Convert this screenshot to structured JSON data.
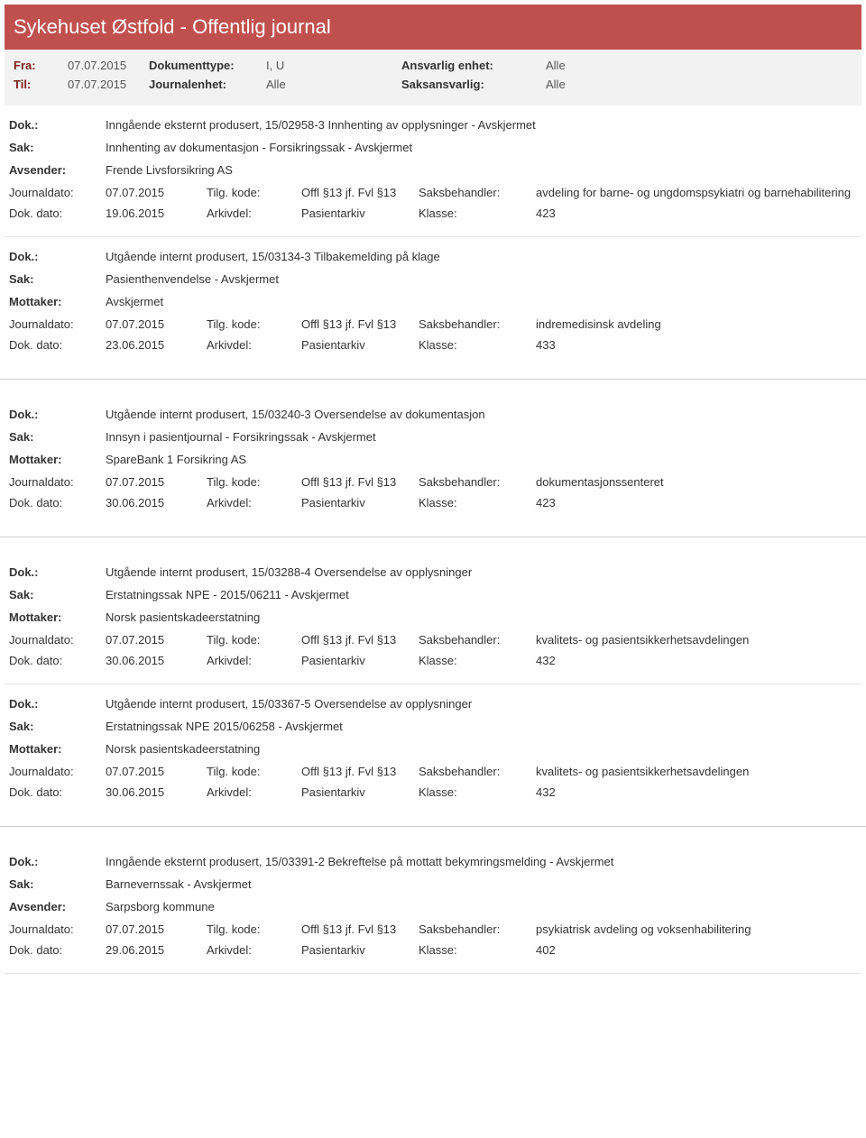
{
  "header": {
    "title": "Sykehuset Østfold - Offentlig journal"
  },
  "filters": {
    "fra_label": "Fra:",
    "fra_value": "07.07.2015",
    "til_label": "Til:",
    "til_value": "07.07.2015",
    "doktype_label": "Dokumenttype:",
    "doktype_value": "I, U",
    "journalenhet_label": "Journalenhet:",
    "journalenhet_value": "Alle",
    "ansvarlig_label": "Ansvarlig enhet:",
    "ansvarlig_value": "Alle",
    "saksansvarlig_label": "Saksansvarlig:",
    "saksansvarlig_value": "Alle"
  },
  "labels": {
    "dok": "Dok.:",
    "sak": "Sak:",
    "avsender": "Avsender:",
    "mottaker": "Mottaker:",
    "journaldato": "Journaldato:",
    "tilgkode": "Tilg. kode:",
    "saksbehandler": "Saksbehandler:",
    "dokdato": "Dok. dato:",
    "arkivdel": "Arkivdel:",
    "klasse": "Klasse:"
  },
  "entries": [
    {
      "dok": "Inngående eksternt produsert, 15/02958-3 Innhenting av opplysninger - Avskjermet",
      "sak": "Innhenting av dokumentasjon - Forsikringssak - Avskjermet",
      "party_label": "Avsender:",
      "party": "Frende Livsforsikring AS",
      "journaldato": "07.07.2015",
      "tilgkode": "Offl §13 jf. Fvl §13",
      "saksbehandler": "avdeling for barne- og ungdomspsykiatri og barnehabilitering",
      "dokdato": "19.06.2015",
      "arkivdel": "Pasientarkiv",
      "klasse": "423",
      "gap": false
    },
    {
      "dok": "Utgående internt produsert, 15/03134-3 Tilbakemelding på klage",
      "sak": "Pasienthenvendelse - Avskjermet",
      "party_label": "Mottaker:",
      "party": "Avskjermet",
      "journaldato": "07.07.2015",
      "tilgkode": "Offl §13 jf. Fvl §13",
      "saksbehandler": "indremedisinsk avdeling",
      "dokdato": "23.06.2015",
      "arkivdel": "Pasientarkiv",
      "klasse": "433",
      "gap": true
    },
    {
      "dok": "Utgående internt produsert, 15/03240-3 Oversendelse av dokumentasjon",
      "sak": "Innsyn i pasientjournal - Forsikringssak - Avskjermet",
      "party_label": "Mottaker:",
      "party": "SpareBank 1 Forsikring AS",
      "journaldato": "07.07.2015",
      "tilgkode": "Offl §13 jf. Fvl §13",
      "saksbehandler": "dokumentasjonssenteret",
      "dokdato": "30.06.2015",
      "arkivdel": "Pasientarkiv",
      "klasse": "423",
      "gap": true
    },
    {
      "dok": "Utgående internt produsert, 15/03288-4 Oversendelse av opplysninger",
      "sak": "Erstatningssak NPE - 2015/06211 - Avskjermet",
      "party_label": "Mottaker:",
      "party": "Norsk pasientskadeerstatning",
      "journaldato": "07.07.2015",
      "tilgkode": "Offl §13 jf. Fvl §13",
      "saksbehandler": "kvalitets- og pasientsikkerhetsavdelingen",
      "dokdato": "30.06.2015",
      "arkivdel": "Pasientarkiv",
      "klasse": "432",
      "gap": false
    },
    {
      "dok": "Utgående internt produsert, 15/03367-5 Oversendelse av opplysninger",
      "sak": "Erstatningssak NPE 2015/06258 - Avskjermet",
      "party_label": "Mottaker:",
      "party": "Norsk pasientskadeerstatning",
      "journaldato": "07.07.2015",
      "tilgkode": "Offl §13 jf. Fvl §13",
      "saksbehandler": "kvalitets- og pasientsikkerhetsavdelingen",
      "dokdato": "30.06.2015",
      "arkivdel": "Pasientarkiv",
      "klasse": "432",
      "gap": true
    },
    {
      "dok": "Inngående eksternt produsert, 15/03391-2 Bekreftelse på mottatt bekymringsmelding - Avskjermet",
      "sak": "Barnevernssak - Avskjermet",
      "party_label": "Avsender:",
      "party": "Sarpsborg kommune",
      "journaldato": "07.07.2015",
      "tilgkode": "Offl §13 jf. Fvl §13",
      "saksbehandler": "psykiatrisk avdeling og voksenhabilitering",
      "dokdato": "29.06.2015",
      "arkivdel": "Pasientarkiv",
      "klasse": "402",
      "gap": false
    }
  ]
}
